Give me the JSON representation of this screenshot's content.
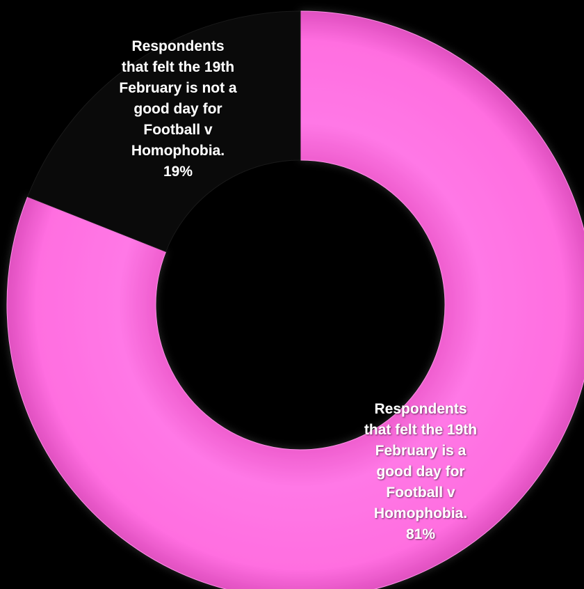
{
  "chart_data": {
    "type": "pie",
    "style": "donut",
    "slices": [
      {
        "label_lines": [
          "Respondents",
          "that felt the 19th",
          "February is a",
          "good day for",
          "Football v",
          "Homophobia."
        ],
        "value": 81,
        "value_label": "81%",
        "color": "#ff70e0",
        "label_color": "#ffffff"
      },
      {
        "label_lines": [
          "Respondents",
          "that felt the 19th",
          "February is not a",
          "good day for",
          "Football v",
          "Homophobia."
        ],
        "value": 19,
        "value_label": "19%",
        "color": "#0a0a0a",
        "label_color": "#ffffff"
      }
    ],
    "start_angle": "12 o'clock",
    "direction": "clockwise",
    "background": "#000000",
    "title": "",
    "legend": "none"
  }
}
